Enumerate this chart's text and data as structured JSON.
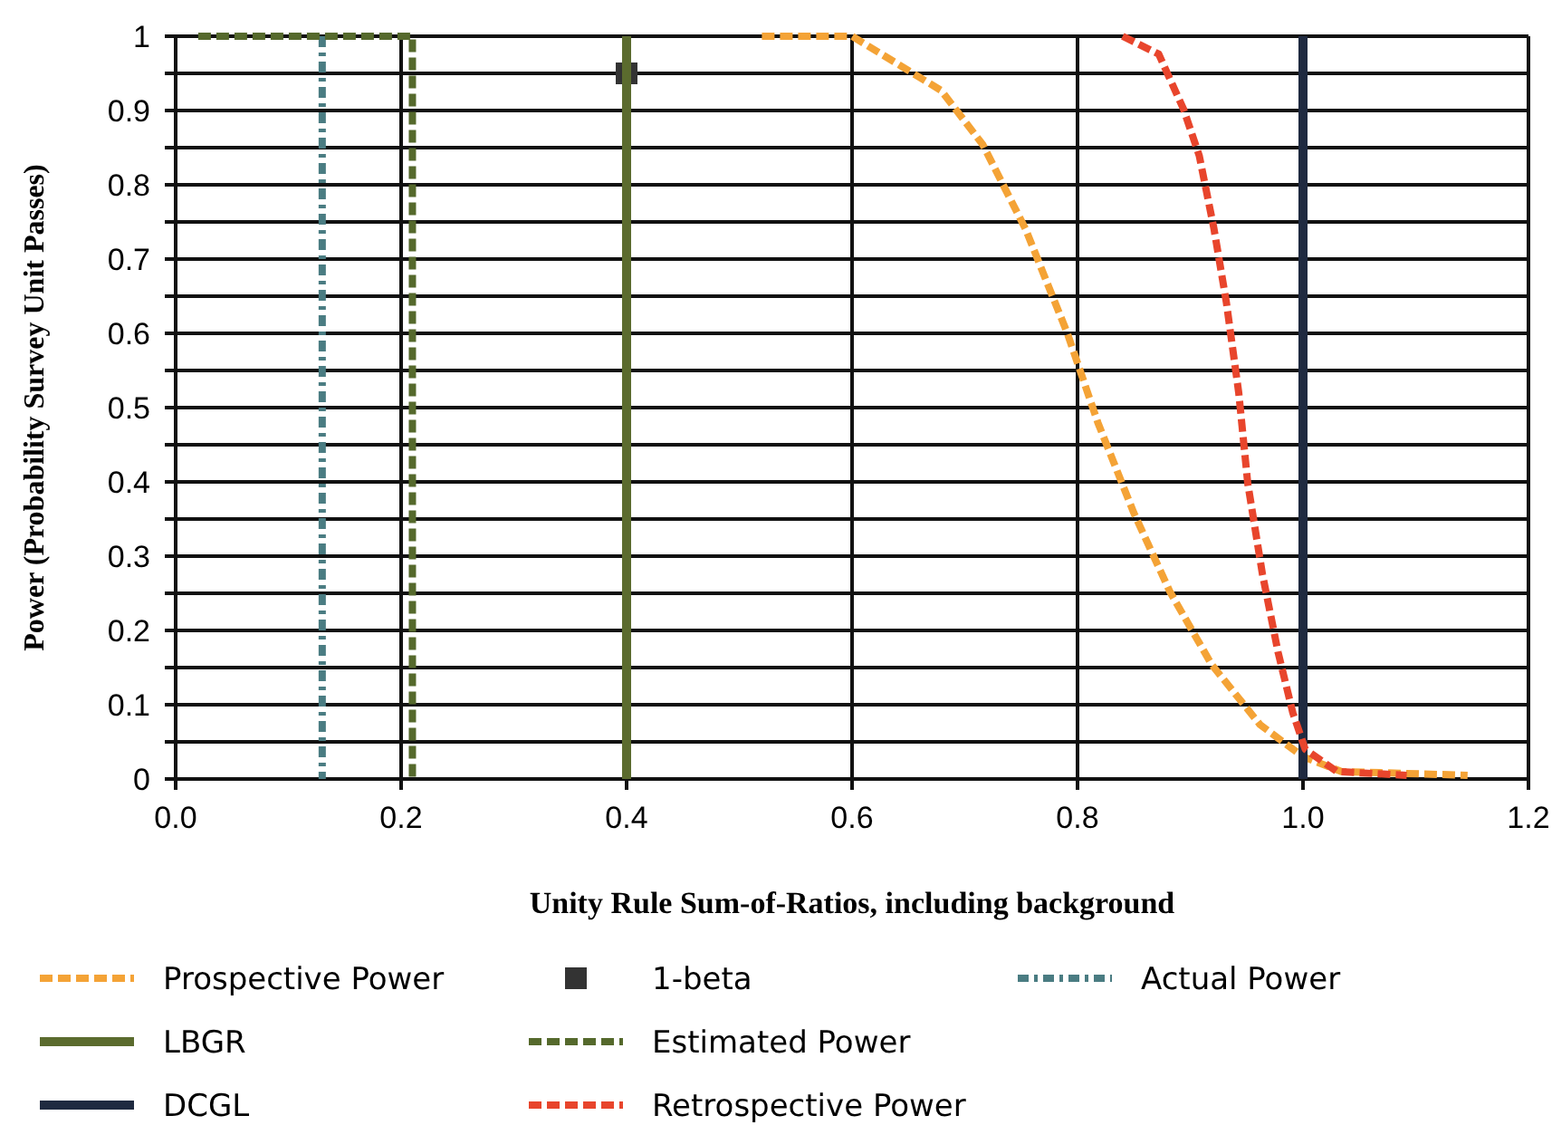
{
  "chart_data": {
    "type": "line",
    "xlabel": "Unity Rule Sum-of-Ratios, including background",
    "ylabel": "Power (Probability Survey Unit Passes)",
    "xlim": [
      0,
      1.2
    ],
    "xticks": [
      {
        "value": 0,
        "label": "0.0"
      },
      0.2,
      0.4,
      0.6,
      0.8,
      {
        "value": 1,
        "label": "1.0"
      },
      1.2
    ],
    "ylim": [
      0,
      1
    ],
    "yticks": [
      0,
      {
        "value": 0.05,
        "label": null
      },
      0.1,
      {
        "value": 0.15,
        "label": null
      },
      0.2,
      {
        "value": 0.25,
        "label": null
      },
      0.3,
      {
        "value": 0.35,
        "label": null
      },
      0.4,
      {
        "value": 0.45,
        "label": null
      },
      0.5,
      {
        "value": 0.55,
        "label": null
      },
      0.6,
      {
        "value": 0.65,
        "label": null
      },
      0.7,
      {
        "value": 0.75,
        "label": null
      },
      0.8,
      {
        "value": 0.85,
        "label": null
      },
      0.9,
      {
        "value": 0.95,
        "label": null
      },
      1
    ],
    "grid": true,
    "legend": "bottom",
    "marker": "none",
    "series": [
      {
        "name": "Prospective Power",
        "color": "#f4a336",
        "line_style": "dashed",
        "x": [
          0.52,
          0.6,
          0.679,
          0.716,
          0.754,
          0.791,
          0.818,
          0.85,
          0.882,
          0.919,
          0.962,
          1.0,
          1.034,
          1.146
        ],
        "values": [
          1,
          1,
          0.927,
          0.854,
          0.74,
          0.6,
          0.48,
          0.358,
          0.252,
          0.154,
          0.073,
          0.03,
          0.01,
          0.005
        ]
      },
      {
        "name": "1-beta",
        "type": "scatter",
        "marker": "square",
        "color": "#333333",
        "x": [
          0.4
        ],
        "values": [
          0.95
        ]
      },
      {
        "name": "Actual Power",
        "color": "#4a7c82",
        "line_style": "dotted",
        "x": [
          0.13,
          0.13
        ],
        "values": [
          1,
          0
        ]
      },
      {
        "name": "LBGR",
        "color": "#5b6b2e",
        "line_style": "solid",
        "x": [
          0.4,
          0.4
        ],
        "values": [
          1,
          0
        ]
      },
      {
        "name": "Estimated Power",
        "color": "#55692c",
        "line_style": "dashed",
        "x": [
          0.02,
          0.21,
          0.21
        ],
        "values": [
          1,
          1,
          0
        ]
      },
      {
        "name": "DCGL",
        "color": "#1f2a40",
        "line_style": "solid",
        "x": [
          1.0,
          1.0
        ],
        "values": [
          1,
          0
        ]
      },
      {
        "name": "Retrospective Power",
        "color": "#e8452c",
        "line_style": "dashed",
        "x": [
          0.84,
          0.872,
          0.894,
          0.908,
          0.921,
          0.932,
          0.943,
          0.951,
          0.964,
          0.978,
          0.991,
          1.002,
          1.03,
          1.092
        ],
        "values": [
          1,
          0.976,
          0.902,
          0.839,
          0.741,
          0.642,
          0.52,
          0.398,
          0.276,
          0.17,
          0.089,
          0.04,
          0.01,
          0.005
        ]
      }
    ]
  }
}
